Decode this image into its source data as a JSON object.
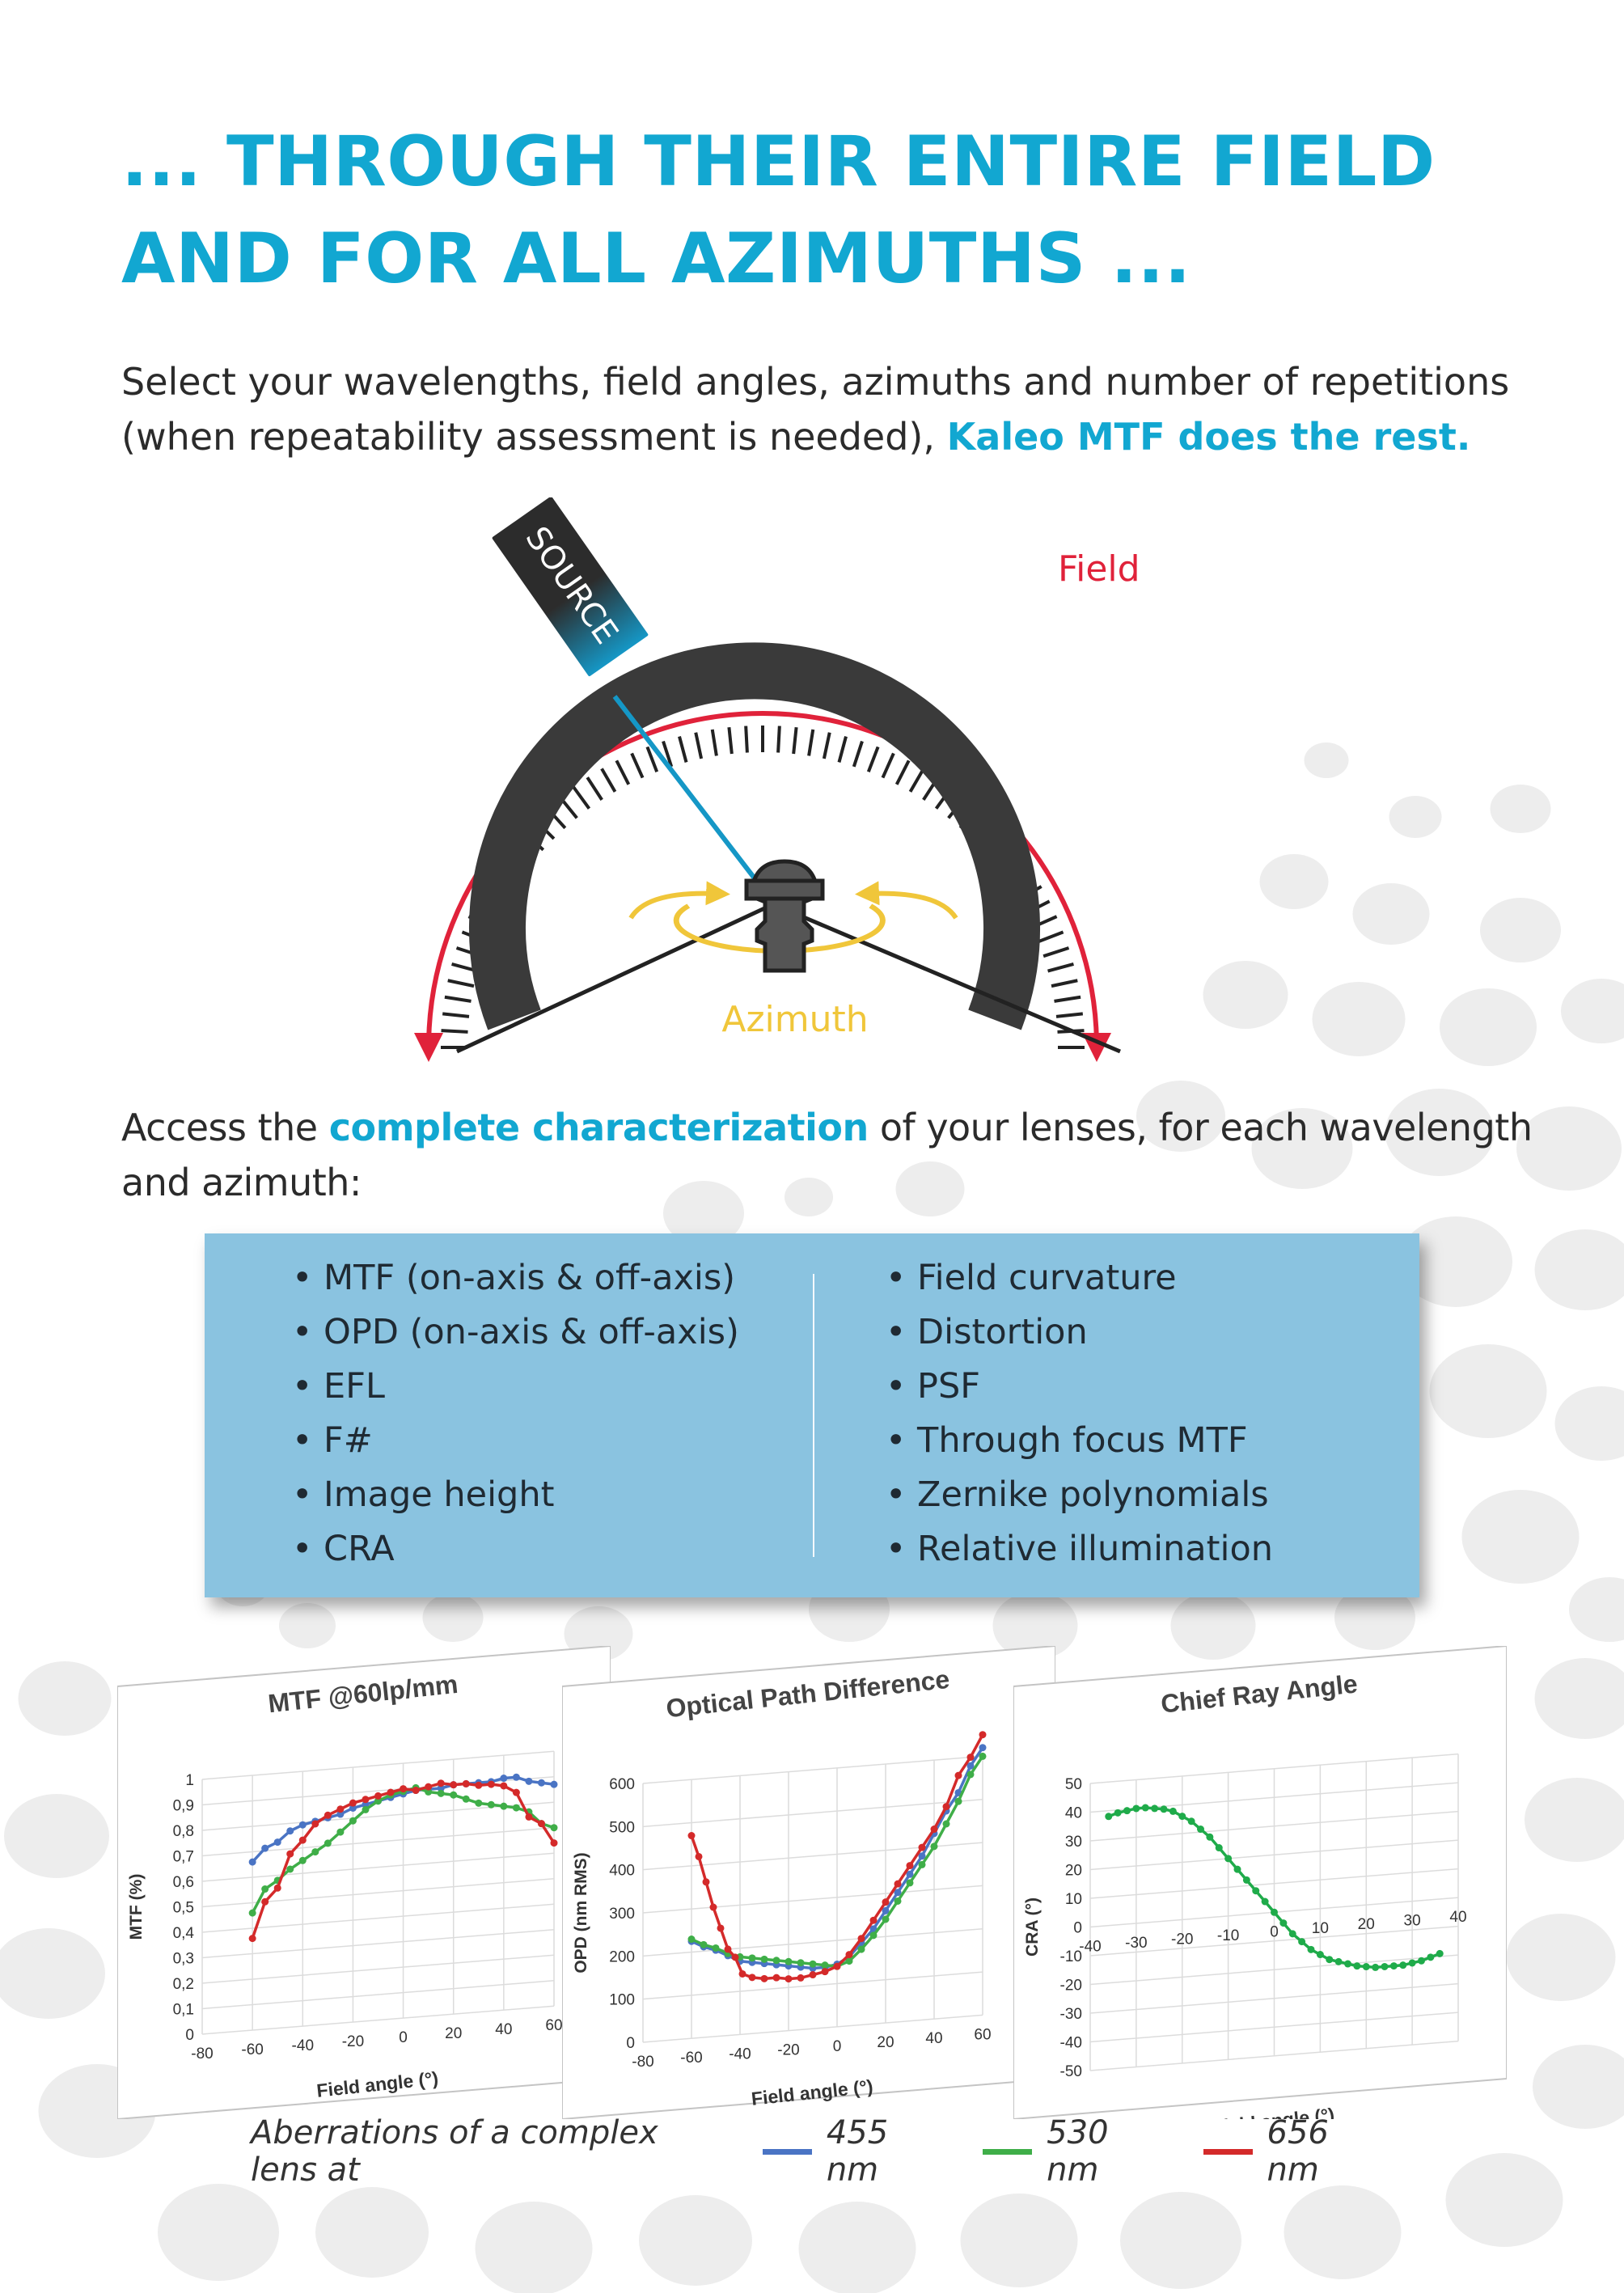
{
  "header": {
    "title_line1": "... THROUGH THEIR ENTIRE FIELD",
    "title_line2": "AND FOR ALL AZIMUTHS ..."
  },
  "intro": {
    "text": "Select your wavelengths, field angles, azimuths and number of repetitions (when repeatability assessment is needed),",
    "highlight": "Kaleo MTF does the rest."
  },
  "diagram": {
    "source_label": "SOURCE",
    "field_label": "Field",
    "azimuth_label": "Azimuth"
  },
  "access": {
    "before": "Access the",
    "highlight": "complete characterization",
    "after": "of your lenses, for each wavelength and azimuth:"
  },
  "features": {
    "left": [
      "MTF (on-axis & off-axis)",
      "OPD (on-axis & off-axis)",
      "EFL",
      "F#",
      "Image height",
      "CRA"
    ],
    "right": [
      "Field curvature",
      "Distortion",
      "PSF",
      "Through focus MTF",
      "Zernike polynomials",
      "Relative illumination"
    ]
  },
  "colors": {
    "accent": "#12a7d1",
    "field_arrow": "#e0223a",
    "azimuth": "#f0c63a",
    "box_bg": "#8ac3e0",
    "series_455": "#4a74c4",
    "series_530": "#3fae48",
    "series_656": "#d42a2a",
    "series_cra": "#1fab4a"
  },
  "chart_data": [
    {
      "type": "line",
      "title": "MTF @60lp/mm",
      "xlabel": "Field angle (°)",
      "ylabel": "MTF (%)",
      "xlim": [
        -80,
        60
      ],
      "ylim": [
        0,
        1
      ],
      "x_ticks": [
        "-80",
        "-60",
        "-40",
        "-20",
        "0",
        "20",
        "40",
        "60"
      ],
      "y_ticks": [
        "0",
        "0,1",
        "0,2",
        "0,3",
        "0,4",
        "0,5",
        "0,6",
        "0,7",
        "0,8",
        "0,9",
        "1"
      ],
      "series": [
        {
          "name": "455 nm",
          "x": [
            -60,
            -55,
            -50,
            -45,
            -40,
            -35,
            -30,
            -25,
            -20,
            -15,
            -10,
            -5,
            0,
            5,
            10,
            15,
            20,
            25,
            30,
            35,
            40,
            45,
            50,
            55,
            60
          ],
          "y": [
            0.66,
            0.71,
            0.73,
            0.77,
            0.79,
            0.8,
            0.81,
            0.82,
            0.84,
            0.85,
            0.86,
            0.87,
            0.88,
            0.89,
            0.89,
            0.89,
            0.9,
            0.9,
            0.9,
            0.9,
            0.91,
            0.91,
            0.89,
            0.88,
            0.87
          ]
        },
        {
          "name": "530 nm",
          "x": [
            -60,
            -55,
            -50,
            -45,
            -40,
            -35,
            -30,
            -25,
            -20,
            -15,
            -10,
            -5,
            0,
            5,
            10,
            15,
            20,
            25,
            30,
            35,
            40,
            45,
            50,
            55,
            60
          ],
          "y": [
            0.46,
            0.55,
            0.58,
            0.62,
            0.65,
            0.68,
            0.71,
            0.75,
            0.79,
            0.83,
            0.86,
            0.88,
            0.89,
            0.9,
            0.88,
            0.87,
            0.86,
            0.84,
            0.82,
            0.81,
            0.8,
            0.79,
            0.77,
            0.72,
            0.7
          ]
        },
        {
          "name": "656 nm",
          "x": [
            -60,
            -55,
            -50,
            -45,
            -40,
            -35,
            -30,
            -25,
            -20,
            -15,
            -10,
            -5,
            0,
            5,
            10,
            15,
            20,
            25,
            30,
            35,
            40,
            45,
            50,
            55,
            60
          ],
          "y": [
            0.36,
            0.5,
            0.55,
            0.68,
            0.73,
            0.79,
            0.82,
            0.84,
            0.86,
            0.87,
            0.88,
            0.89,
            0.9,
            0.89,
            0.9,
            0.91,
            0.9,
            0.9,
            0.89,
            0.89,
            0.88,
            0.85,
            0.75,
            0.72,
            0.64
          ]
        }
      ]
    },
    {
      "type": "line",
      "title": "Optical Path Difference",
      "xlabel": "Field angle (°)",
      "ylabel": "OPD (nm RMS)",
      "xlim": [
        -80,
        60
      ],
      "ylim": [
        0,
        600
      ],
      "x_ticks": [
        "-80",
        "-60",
        "-40",
        "-20",
        "0",
        "20",
        "40",
        "60"
      ],
      "y_ticks": [
        "0",
        "100",
        "200",
        "300",
        "400",
        "500",
        "600"
      ],
      "series": [
        {
          "name": "455 nm",
          "x": [
            -60,
            -55,
            -50,
            -45,
            -40,
            -35,
            -30,
            -25,
            -20,
            -15,
            -10,
            -5,
            0,
            5,
            10,
            15,
            20,
            25,
            30,
            35,
            40,
            45,
            50,
            55,
            60
          ],
          "y": [
            225,
            210,
            200,
            185,
            170,
            165,
            160,
            155,
            150,
            145,
            140,
            140,
            145,
            160,
            190,
            220,
            260,
            300,
            340,
            380,
            430,
            480,
            520,
            580,
            620
          ]
        },
        {
          "name": "530 nm",
          "x": [
            -60,
            -55,
            -50,
            -45,
            -40,
            -35,
            -30,
            -25,
            -20,
            -15,
            -10,
            -5,
            0,
            5,
            10,
            15,
            20,
            25,
            30,
            35,
            40,
            45,
            50,
            55,
            60
          ],
          "y": [
            230,
            215,
            205,
            190,
            180,
            175,
            170,
            165,
            160,
            155,
            150,
            145,
            140,
            150,
            175,
            205,
            240,
            280,
            320,
            360,
            400,
            450,
            500,
            560,
            600
          ]
        },
        {
          "name": "656 nm",
          "x": [
            -60,
            -57,
            -54,
            -51,
            -48,
            -45,
            -42,
            -39,
            -35,
            -30,
            -25,
            -20,
            -15,
            -10,
            -5,
            0,
            5,
            10,
            15,
            20,
            25,
            30,
            35,
            40,
            45,
            50,
            55,
            60
          ],
          "y": [
            470,
            420,
            360,
            300,
            250,
            200,
            180,
            140,
            130,
            125,
            125,
            120,
            120,
            125,
            130,
            140,
            165,
            200,
            240,
            280,
            320,
            360,
            400,
            440,
            490,
            560,
            600,
            650
          ]
        }
      ]
    },
    {
      "type": "line",
      "title": "Chief Ray Angle",
      "xlabel": "Field angle (°)",
      "ylabel": "CRA (°)",
      "xlim": [
        -40,
        40
      ],
      "ylim": [
        -50,
        50
      ],
      "x_ticks": [
        "-40",
        "-30",
        "-20",
        "-10",
        "0",
        "10",
        "20",
        "30",
        "40"
      ],
      "y_ticks": [
        "-50",
        "-40",
        "-30",
        "-20",
        "-10",
        "0",
        "10",
        "20",
        "30",
        "40",
        "50"
      ],
      "series": [
        {
          "name": "CRA",
          "x": [
            -36,
            -34,
            -32,
            -30,
            -28,
            -26,
            -24,
            -22,
            -20,
            -18,
            -16,
            -14,
            -12,
            -10,
            -8,
            -6,
            -4,
            -2,
            0,
            2,
            4,
            6,
            8,
            10,
            12,
            14,
            16,
            18,
            20,
            22,
            24,
            26,
            28,
            30,
            32,
            34,
            36
          ],
          "y": [
            38,
            39,
            39.5,
            40,
            40,
            39.5,
            39,
            38,
            36,
            34,
            31,
            28,
            24,
            20,
            16,
            12,
            8,
            4,
            0,
            -4,
            -8,
            -11,
            -14,
            -16,
            -18,
            -19,
            -20,
            -21,
            -21.5,
            -22,
            -22,
            -22,
            -22,
            -21.5,
            -21,
            -20,
            -19
          ]
        }
      ]
    }
  ],
  "legend": {
    "caption": "Aberrations of a complex lens at",
    "items": [
      {
        "label": "455 nm",
        "color": "#4a74c4"
      },
      {
        "label": "530 nm",
        "color": "#3fae48"
      },
      {
        "label": "656 nm",
        "color": "#d42a2a"
      }
    ]
  }
}
